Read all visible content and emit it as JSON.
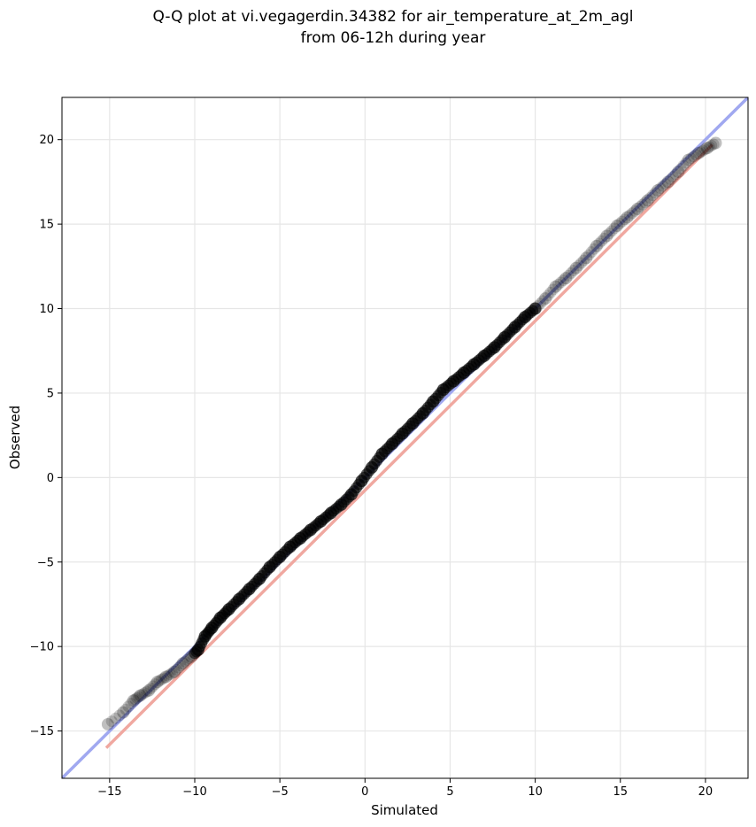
{
  "chart_data": {
    "type": "scatter",
    "title_lines": [
      "Q-Q plot at vi.vegagerdin.34382 for air_temperature_at_2m_agl",
      "from 06-12h during year"
    ],
    "xlabel": "Simulated",
    "ylabel": "Observed",
    "xlim": [
      -17.8,
      22.5
    ],
    "ylim": [
      -17.8,
      22.5
    ],
    "grid": true,
    "xticks": [
      -15,
      -10,
      -5,
      0,
      5,
      10,
      15,
      20
    ],
    "yticks": [
      -15,
      -10,
      -5,
      0,
      5,
      10,
      15,
      20
    ],
    "xtick_labels": [
      "−15",
      "−10",
      "−5",
      "0",
      "5",
      "10",
      "15",
      "20"
    ],
    "ytick_labels": [
      "−15",
      "−10",
      "−5",
      "0",
      "5",
      "10",
      "15",
      "20"
    ],
    "reference_line": {
      "color": "#a0a8f0",
      "points": [
        [
          -17.8,
          -17.8
        ],
        [
          22.5,
          22.5
        ]
      ]
    },
    "fit_line": {
      "color": "#f0a8a0",
      "points": [
        [
          -15.2,
          -16.0
        ],
        [
          20.4,
          19.7
        ]
      ]
    },
    "quantile_points": {
      "color": "#000000",
      "x": [
        -15.1,
        -14.2,
        -13.6,
        -13.2,
        -12.7,
        -12.2,
        -11.7,
        -11.2,
        -10.7,
        -10.2,
        -9.8,
        -9.4,
        -9.0,
        -8.5,
        -8.0,
        -7.4,
        -6.8,
        -6.2,
        -5.6,
        -5.0,
        -4.4,
        -3.8,
        -3.2,
        -2.6,
        -2.0,
        -1.4,
        -0.8,
        -0.2,
        0.4,
        1.0,
        1.6,
        2.2,
        2.8,
        3.4,
        4.0,
        4.6,
        5.2,
        5.8,
        6.4,
        7.0,
        7.6,
        8.2,
        8.8,
        9.4,
        10.0,
        10.6,
        11.2,
        11.8,
        12.4,
        13.0,
        13.6,
        14.2,
        14.8,
        15.4,
        16.0,
        16.6,
        17.2,
        17.8,
        18.4,
        19.0,
        19.6,
        20.1,
        20.6
      ],
      "y": [
        -14.6,
        -13.9,
        -13.2,
        -12.9,
        -12.6,
        -12.1,
        -11.8,
        -11.5,
        -11.0,
        -10.6,
        -10.2,
        -9.4,
        -8.9,
        -8.3,
        -7.8,
        -7.2,
        -6.6,
        -6.0,
        -5.3,
        -4.7,
        -4.1,
        -3.6,
        -3.1,
        -2.6,
        -2.1,
        -1.6,
        -1.0,
        -0.2,
        0.6,
        1.4,
        2.0,
        2.6,
        3.2,
        3.8,
        4.5,
        5.2,
        5.7,
        6.2,
        6.7,
        7.2,
        7.7,
        8.3,
        8.9,
        9.5,
        10.0,
        10.6,
        11.3,
        11.8,
        12.4,
        13.0,
        13.7,
        14.3,
        14.9,
        15.4,
        15.9,
        16.4,
        17.0,
        17.5,
        18.1,
        18.8,
        19.2,
        19.5,
        19.8
      ]
    }
  }
}
